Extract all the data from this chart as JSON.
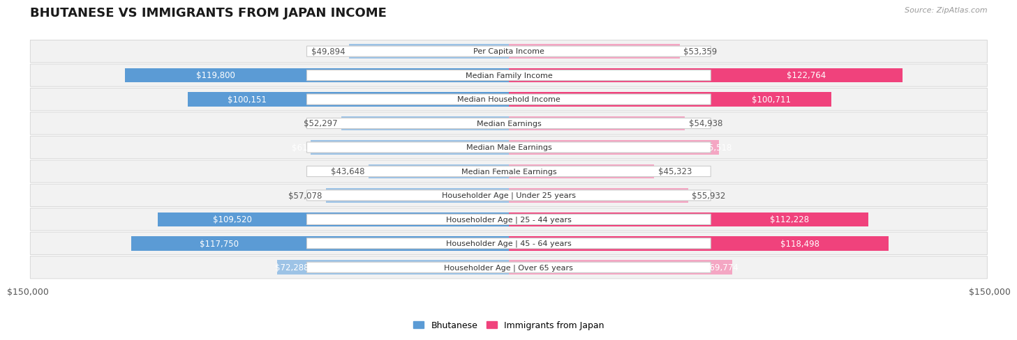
{
  "title": "BHUTANESE VS IMMIGRANTS FROM JAPAN INCOME",
  "source": "Source: ZipAtlas.com",
  "max_value": 150000,
  "categories": [
    "Per Capita Income",
    "Median Family Income",
    "Median Household Income",
    "Median Earnings",
    "Median Male Earnings",
    "Median Female Earnings",
    "Householder Age | Under 25 years",
    "Householder Age | 25 - 44 years",
    "Householder Age | 45 - 64 years",
    "Householder Age | Over 65 years"
  ],
  "bhutanese": [
    49894,
    119800,
    100151,
    52297,
    61759,
    43648,
    57078,
    109520,
    117750,
    72288
  ],
  "japan": [
    53359,
    122764,
    100711,
    54938,
    65518,
    45323,
    55932,
    112228,
    118498,
    69774
  ],
  "bhutanese_inside_threshold": 60000,
  "japan_inside_threshold": 60000,
  "bhutanese_color_strong": "#5b9bd5",
  "bhutanese_color_light": "#9dc3e6",
  "japan_color_strong": "#f0427c",
  "japan_color_light": "#f4a6c3",
  "row_bg_color": "#f2f2f2",
  "row_border_color": "#d8d8d8",
  "label_box_color": "#ffffff",
  "label_border_color": "#cccccc",
  "label_fontsize": 8.0,
  "value_fontsize": 8.5,
  "title_fontsize": 13,
  "background_color": "#ffffff",
  "ylim_label": "$150,000",
  "legend_bhutanese": "Bhutanese",
  "legend_japan": "Immigrants from Japan",
  "bhutanese_strong": [
    119800,
    100151,
    109520,
    117750
  ],
  "japan_strong": [
    122764,
    100711,
    112228,
    118498
  ]
}
